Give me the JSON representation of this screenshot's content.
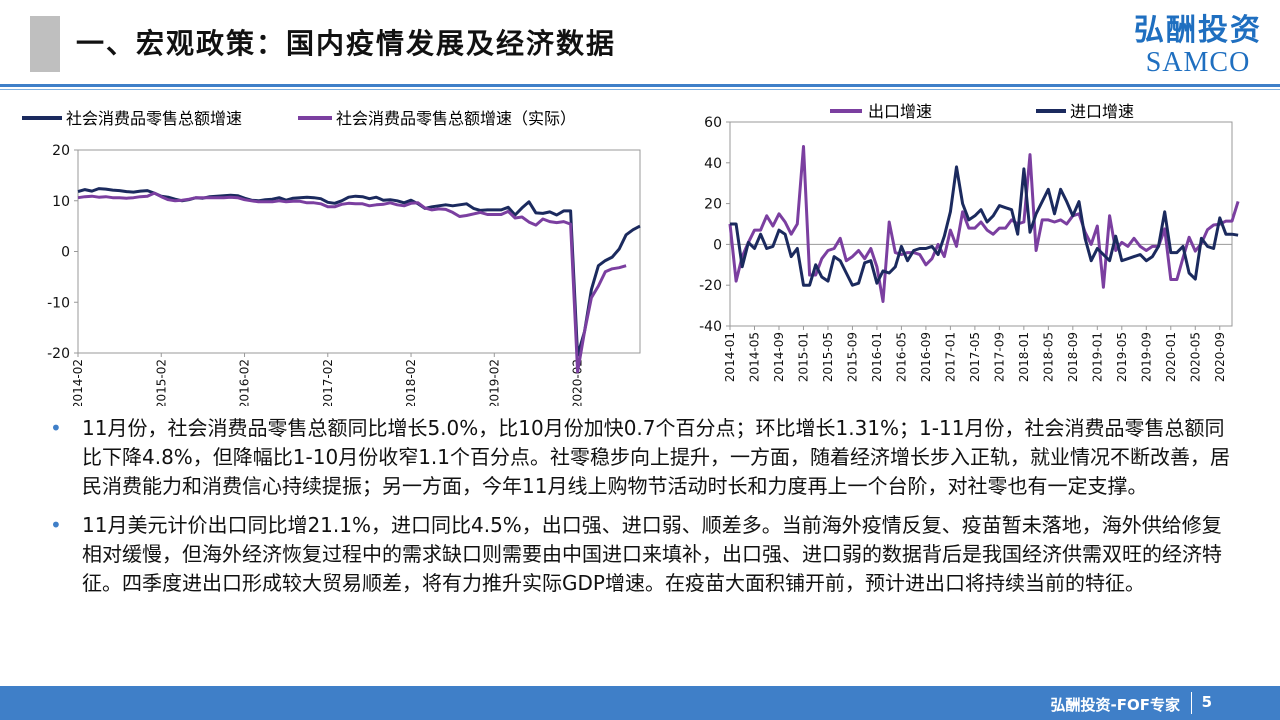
{
  "header": {
    "title": "一、宏观政策：国内疫情发展及经济数据",
    "logo_cn": "弘酬投资",
    "logo_en": "SAMCO"
  },
  "colors": {
    "navy": "#1b2a5e",
    "purple": "#7b3fa0",
    "accent": "#3f7fc8"
  },
  "chart_data": [
    {
      "type": "line",
      "ylim": [
        -20,
        20
      ],
      "yticks": [
        20,
        10,
        0,
        -10,
        -20
      ],
      "xticks": [
        "2014-02",
        "2015-02",
        "2016-02",
        "2017-02",
        "2018-02",
        "2019-02",
        "2020-02"
      ],
      "grid": false,
      "legend": "top",
      "series": [
        {
          "name": "社会消费品零售总额增速",
          "values": [
            11.8,
            12.2,
            11.9,
            12.4,
            12.3,
            12.1,
            12.0,
            11.8,
            11.7,
            11.9,
            12.0,
            11.5,
            10.9,
            10.7,
            10.3,
            10.0,
            10.2,
            10.6,
            10.5,
            10.8,
            10.9,
            11.0,
            11.1,
            11.0,
            10.5,
            10.1,
            10.0,
            10.2,
            10.3,
            10.6,
            10.1,
            10.5,
            10.6,
            10.7,
            10.6,
            10.4,
            9.7,
            9.5,
            10.0,
            10.7,
            10.9,
            10.8,
            10.4,
            10.7,
            10.1,
            10.2,
            10.0,
            9.6,
            10.1,
            9.4,
            8.5,
            8.8,
            9.0,
            9.2,
            9.0,
            9.2,
            9.4,
            8.5,
            8.1,
            8.2,
            8.2,
            8.2,
            8.7,
            7.2,
            8.6,
            9.8,
            7.6,
            7.5,
            7.8,
            7.2,
            8.0,
            8.0,
            -20.5,
            -15.8,
            -7.5,
            -2.8,
            -1.8,
            -1.1,
            0.5,
            3.3,
            4.3,
            5.0
          ]
        },
        {
          "name": "社会消费品零售总额增速（实际）",
          "values": [
            10.6,
            10.8,
            10.9,
            10.7,
            10.8,
            10.6,
            10.6,
            10.5,
            10.6,
            10.8,
            10.9,
            11.5,
            10.8,
            10.2,
            10.0,
            10.1,
            10.3,
            10.6,
            10.6,
            10.6,
            10.6,
            10.6,
            10.7,
            10.6,
            10.2,
            10.0,
            9.8,
            9.8,
            9.8,
            10.0,
            9.8,
            9.9,
            9.9,
            9.6,
            9.6,
            9.4,
            8.8,
            8.8,
            9.3,
            9.5,
            9.4,
            9.4,
            9.0,
            9.2,
            9.3,
            9.6,
            9.2,
            9.0,
            9.5,
            9.6,
            8.6,
            8.2,
            8.4,
            8.3,
            7.7,
            6.9,
            7.1,
            7.4,
            7.7,
            7.3,
            7.3,
            7.3,
            7.9,
            6.6,
            6.8,
            5.8,
            5.2,
            6.4,
            5.9,
            5.7,
            5.9,
            5.4,
            -23.7,
            -15.8,
            -9.1,
            -6.8,
            -4.0,
            -3.4,
            -3.2,
            -2.8
          ]
        }
      ]
    },
    {
      "type": "line",
      "ylim": [
        -40,
        60
      ],
      "yticks": [
        60,
        40,
        20,
        0,
        -20,
        -40
      ],
      "xticks": [
        "2014-01",
        "2014-05",
        "2014-09",
        "2015-01",
        "2015-05",
        "2015-09",
        "2016-01",
        "2016-05",
        "2016-09",
        "2017-01",
        "2017-05",
        "2017-09",
        "2018-01",
        "2018-05",
        "2018-09",
        "2019-01",
        "2019-05",
        "2019-09",
        "2020-01",
        "2020-05",
        "2020-09"
      ],
      "grid": false,
      "legend": "top",
      "series": [
        {
          "name": "出口增速",
          "values": [
            10,
            -18,
            -6,
            1,
            7,
            7,
            14,
            9,
            15,
            11,
            5,
            10,
            48,
            -15,
            -15,
            -7,
            -3,
            -2,
            3,
            -8,
            -6,
            -3,
            -7,
            -2,
            -11,
            -28,
            11,
            -4,
            -5,
            -4,
            -4,
            -5,
            -10,
            -7,
            0,
            -6,
            7,
            -1,
            16,
            8,
            8,
            11,
            7,
            5,
            8,
            8,
            12,
            10,
            11,
            44,
            -3,
            12,
            12,
            11,
            12,
            10,
            14,
            15,
            6,
            0,
            9,
            -21,
            14,
            -3,
            1,
            -1,
            3,
            -1,
            -3,
            -1,
            -1,
            7.6,
            -17.2,
            -17.2,
            -6.6,
            3.5,
            -3.3,
            0.5,
            7.2,
            9.5,
            9.9,
            11.4,
            11.4,
            21.1
          ]
        },
        {
          "name": "进口增速",
          "values": [
            10,
            10,
            -11,
            1,
            -2,
            5,
            -2,
            -1,
            7,
            5,
            -6,
            -2,
            -20,
            -20,
            -10,
            -16,
            -18,
            -6,
            -8,
            -14,
            -20,
            -19,
            -9,
            -8,
            -19,
            -13,
            -14,
            -11,
            -1,
            -8,
            -3,
            -2,
            -2,
            -1,
            -5,
            4,
            16,
            38,
            20,
            12,
            14,
            17,
            11,
            14,
            19,
            18,
            17,
            5,
            37,
            6,
            15,
            21,
            27,
            15,
            27,
            21,
            14,
            21,
            3,
            -8,
            -2,
            -5,
            -8,
            4,
            -8,
            -7,
            -6,
            -5,
            -8,
            -6,
            -1,
            16,
            -4,
            -4,
            -1,
            -14,
            -17,
            3,
            -1,
            -2,
            13,
            5,
            5,
            4.5
          ]
        }
      ]
    }
  ],
  "bullets": [
    "11月份，社会消费品零售总额同比增长5.0%，比10月份加快0.7个百分点；环比增长1.31%；1-11月份，社会消费品零售总额同比下降4.8%，但降幅比1-10月份收窄1.1个百分点。社零稳步向上提升，一方面，随着经济增长步入正轨，就业情况不断改善，居民消费能力和消费信心持续提振；另一方面，今年11月线上购物节活动时长和力度再上一个台阶，对社零也有一定支撑。",
    "11月美元计价出口同比增21.1%，进口同比4.5%，出口强、进口弱、顺差多。当前海外疫情反复、疫苗暂未落地，海外供给修复相对缓慢，但海外经济恢复过程中的需求缺口则需要由中国进口来填补，出口强、进口弱的数据背后是我国经济供需双旺的经济特征。四季度进出口形成较大贸易顺差，将有力推升实际GDP增速。在疫苗大面积铺开前，预计进出口将持续当前的特征。"
  ],
  "footer": {
    "text": "弘酬投资-FOF专家",
    "page": "5"
  }
}
